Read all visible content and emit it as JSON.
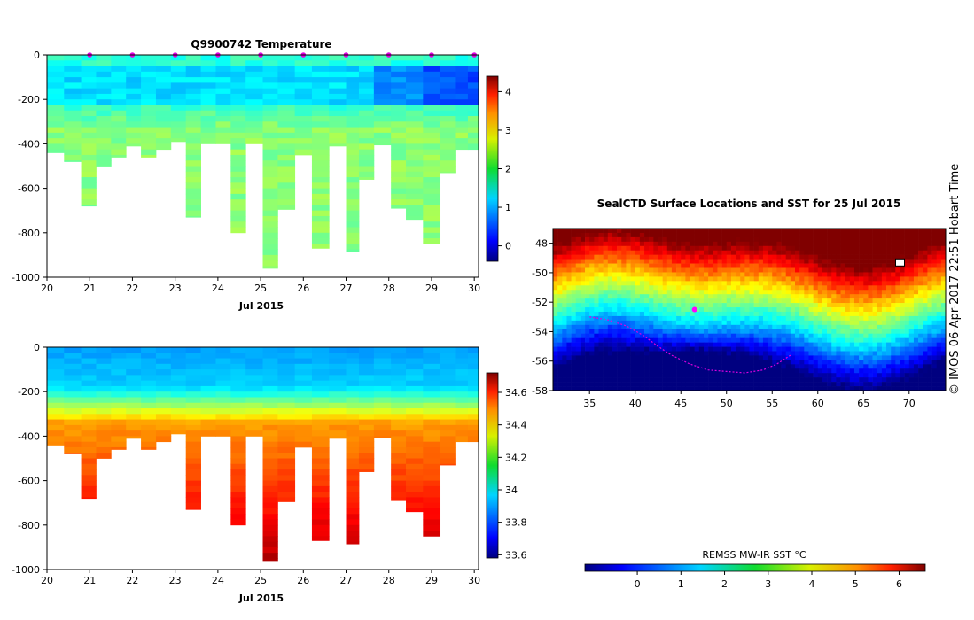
{
  "charts": {
    "temperature": {
      "title": "Q9900742  Temperature",
      "xlabel": "Jul 2015",
      "x_ticks": [
        "20",
        "21",
        "22",
        "23",
        "24",
        "25",
        "26",
        "27",
        "28",
        "29",
        "30"
      ],
      "y_ticks": [
        "0",
        "-200",
        "-400",
        "-600",
        "-800",
        "-1000"
      ],
      "colorbar_ticks": [
        "4",
        "3",
        "2",
        "1",
        "0"
      ]
    },
    "salinity": {
      "xlabel": "Jul 2015",
      "x_ticks": [
        "20",
        "21",
        "22",
        "23",
        "24",
        "25",
        "26",
        "27",
        "28",
        "29",
        "30"
      ],
      "y_ticks": [
        "0",
        "-200",
        "-400",
        "-600",
        "-800",
        "-1000"
      ],
      "colorbar_ticks": [
        "34.6",
        "34.4",
        "34.2",
        "34",
        "33.8",
        "33.6"
      ]
    },
    "map": {
      "title": "SealCTD Surface Locations and SST for 25 Jul 2015",
      "x_ticks": [
        "35",
        "40",
        "45",
        "50",
        "55",
        "60",
        "65",
        "70"
      ],
      "y_ticks": [
        "-48",
        "-50",
        "-52",
        "-54",
        "-56",
        "-58"
      ],
      "colorbar_label": "REMSS MW-IR SST °C",
      "colorbar_ticks": [
        "0",
        "1",
        "2",
        "3",
        "4",
        "5",
        "6"
      ]
    },
    "credit": "©  IMOS 06-Apr-2017 22:51 Hobart Time"
  },
  "chart_data": [
    {
      "type": "heatmap",
      "name": "temperature-section",
      "title": "Q9900742  Temperature",
      "xlabel": "Jul 2015",
      "ylabel": "",
      "xlim": [
        20,
        30.1
      ],
      "ylim": [
        -1000,
        0
      ],
      "colorbar_range": [
        -0.4,
        4.4
      ],
      "colorbar_ticks": [
        0,
        1,
        2,
        3,
        4
      ],
      "profile_days": [
        20.0,
        20.4,
        20.8,
        21.15,
        21.5,
        21.85,
        22.2,
        22.55,
        22.9,
        23.25,
        23.6,
        23.95,
        24.3,
        24.65,
        25.05,
        25.4,
        25.8,
        26.2,
        26.6,
        27.0,
        27.3,
        27.65,
        28.05,
        28.4,
        28.8,
        29.2,
        29.55,
        29.85
      ],
      "profile_max_depth_m": [
        440,
        480,
        680,
        500,
        460,
        410,
        460,
        425,
        390,
        730,
        400,
        400,
        800,
        400,
        960,
        695,
        450,
        870,
        410,
        885,
        560,
        405,
        690,
        740,
        850,
        530,
        425,
        425
      ],
      "surface_markers_days": [
        21,
        22,
        23,
        24,
        25,
        26,
        27,
        28,
        29,
        30
      ],
      "pattern": "~1.5-2 degC near surface, colder (~0.5 degC) pockets at 100-200 m after 28 Jul, ~2 degC below 300 m"
    },
    {
      "type": "heatmap",
      "name": "salinity-section",
      "title": "",
      "xlabel": "Jul 2015",
      "xlim": [
        20,
        30.1
      ],
      "ylim": [
        -1000,
        0
      ],
      "colorbar_range": [
        33.58,
        34.72
      ],
      "colorbar_ticks": [
        33.6,
        33.8,
        34.0,
        34.2,
        34.4,
        34.6
      ],
      "profile_days": [
        20.0,
        20.4,
        20.8,
        21.15,
        21.5,
        21.85,
        22.2,
        22.55,
        22.9,
        23.25,
        23.6,
        23.95,
        24.3,
        24.65,
        25.05,
        25.4,
        25.8,
        26.2,
        26.6,
        27.0,
        27.3,
        27.65,
        28.05,
        28.4,
        28.8,
        29.2,
        29.55,
        29.85
      ],
      "profile_max_depth_m": [
        440,
        480,
        680,
        500,
        460,
        410,
        460,
        425,
        390,
        730,
        400,
        400,
        800,
        400,
        960,
        695,
        450,
        870,
        410,
        885,
        560,
        405,
        690,
        740,
        850,
        530,
        425,
        425
      ],
      "pattern": "~33.9 near surface increasing with depth to ~34.7 at 1000 m"
    },
    {
      "type": "heatmap",
      "name": "sst-map",
      "title": "SealCTD Surface Locations and SST for 25 Jul 2015",
      "xlim": [
        31,
        74
      ],
      "ylim": [
        -58,
        -47
      ],
      "x_ticks": [
        35,
        40,
        45,
        50,
        55,
        60,
        65,
        70
      ],
      "y_ticks": [
        -48,
        -50,
        -52,
        -54,
        -56,
        -58
      ],
      "colorbar_label": "REMSS MW-IR SST °C",
      "colorbar_range": [
        -1.2,
        6.6
      ],
      "track_lonlat": [
        [
          35.0,
          -53.0
        ],
        [
          37.0,
          -53.2
        ],
        [
          39.0,
          -53.6
        ],
        [
          41.0,
          -54.3
        ],
        [
          42.5,
          -55.0
        ],
        [
          44.0,
          -55.6
        ],
        [
          46.0,
          -56.2
        ],
        [
          48.0,
          -56.6
        ],
        [
          50.0,
          -56.7
        ],
        [
          52.0,
          -56.8
        ],
        [
          54.0,
          -56.6
        ],
        [
          55.5,
          -56.2
        ],
        [
          57.0,
          -55.6
        ]
      ],
      "seal_location_lonlat": [
        46.5,
        -52.5
      ],
      "vessel_location_lonlat": [
        69.0,
        -49.3
      ]
    }
  ]
}
